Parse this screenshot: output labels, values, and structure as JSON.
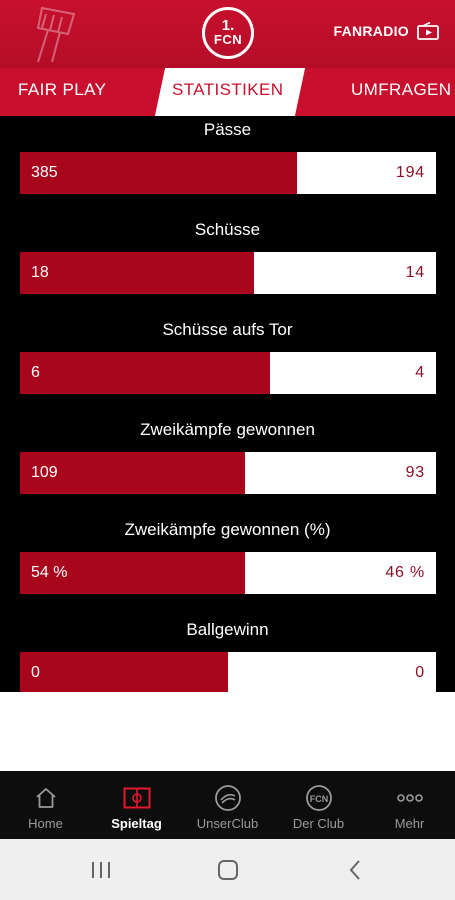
{
  "header": {
    "logo_line1": "1.",
    "logo_line2": "FCN",
    "fanradio_label": "FANRADIO"
  },
  "tabs": [
    {
      "label": "FAIR PLAY",
      "active": false
    },
    {
      "label": "STATISTIKEN",
      "active": true
    },
    {
      "label": "UMFRAGEN",
      "active": false
    }
  ],
  "stats": [
    {
      "title": "Pässe",
      "home": "385",
      "away": "194",
      "home_share": 0.665
    },
    {
      "title": "Schüsse",
      "home": "18",
      "away": "14",
      "home_share": 0.563
    },
    {
      "title": "Schüsse aufs Tor",
      "home": "6",
      "away": "4",
      "home_share": 0.6
    },
    {
      "title": "Zweikämpfe gewonnen",
      "home": "109",
      "away": "93",
      "home_share": 0.54
    },
    {
      "title": "Zweikämpfe gewonnen (%)",
      "home": "54 %",
      "away": "46 %",
      "home_share": 0.54
    },
    {
      "title": "Ballgewinn",
      "home": "0",
      "away": "0",
      "home_share": 0.5
    }
  ],
  "nav": [
    {
      "label": "Home",
      "icon": "home-icon",
      "active": false
    },
    {
      "label": "Spieltag",
      "icon": "pitch-icon",
      "active": true
    },
    {
      "label": "UnserClub",
      "icon": "unserclub-icon",
      "active": false
    },
    {
      "label": "Der Club",
      "icon": "club-crest-icon",
      "active": false
    },
    {
      "label": "Mehr",
      "icon": "more-dots-icon",
      "active": false
    }
  ],
  "colors": {
    "brand_red": "#c8102e",
    "bar_red": "#a8061c",
    "panel_bg": "#000000"
  }
}
